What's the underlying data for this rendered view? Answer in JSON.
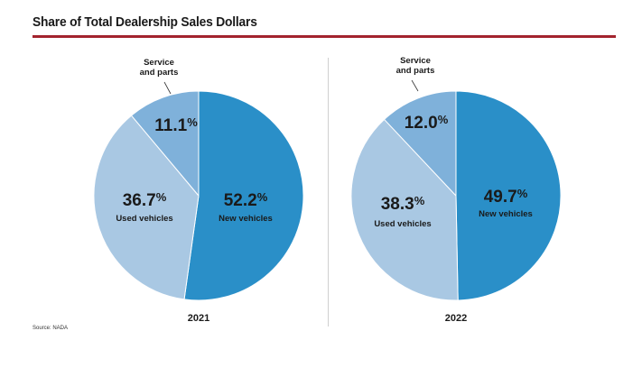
{
  "title": "Share of Total Dealership Sales Dollars",
  "source": "Source: NADA",
  "colors": {
    "new": "#2a8fc8",
    "used": "#a9c8e3",
    "service": "#7fb1da",
    "title_rule": "#a3232e",
    "stroke": "#ffffff"
  },
  "chart_data": [
    {
      "type": "pie",
      "title": "2021",
      "slices": [
        {
          "key": "new",
          "label": "New vehicles",
          "value": 52.2,
          "display": "52.2",
          "unit": "%"
        },
        {
          "key": "used",
          "label": "Used vehicles",
          "value": 36.7,
          "display": "36.7",
          "unit": "%"
        },
        {
          "key": "service",
          "label": "Service\nand parts",
          "value": 11.1,
          "display": "11.1",
          "unit": "%"
        }
      ]
    },
    {
      "type": "pie",
      "title": "2022",
      "slices": [
        {
          "key": "new",
          "label": "New vehicles",
          "value": 49.7,
          "display": "49.7",
          "unit": "%"
        },
        {
          "key": "used",
          "label": "Used vehicles",
          "value": 38.3,
          "display": "38.3",
          "unit": "%"
        },
        {
          "key": "service",
          "label": "Service\nand parts",
          "value": 12.0,
          "display": "12.0",
          "unit": "%"
        }
      ]
    }
  ]
}
